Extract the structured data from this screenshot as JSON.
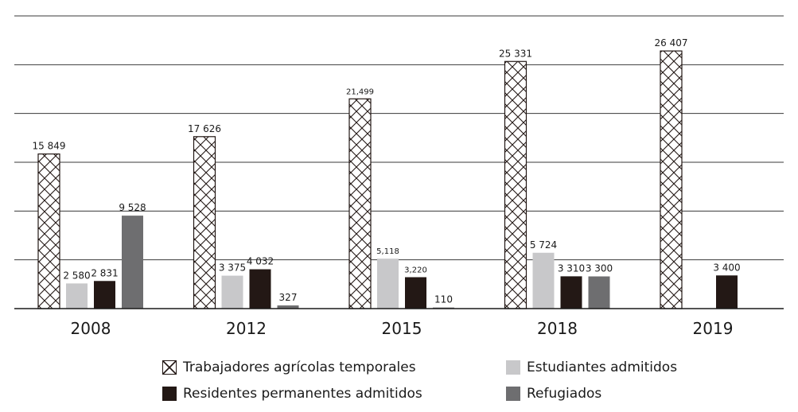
{
  "chart_data": {
    "type": "bar",
    "title": "",
    "xlabel": "",
    "ylabel": "",
    "ylim": [
      0,
      30000
    ],
    "grid": true,
    "categories": [
      "2008",
      "2012",
      "2015",
      "2018",
      "2019"
    ],
    "series": [
      {
        "name": "Trabajadores agrícolas temporales",
        "pattern": "crosshatch",
        "color": "#ffffff",
        "values": [
          15849,
          17626,
          21499,
          25331,
          26407
        ],
        "labels": [
          "15 849",
          "17 626",
          "21,499",
          "25 331",
          "26 407"
        ]
      },
      {
        "name": "Estudiantes admitidos",
        "color": "#c8c8ca",
        "values": [
          2580,
          3375,
          5118,
          5724,
          null
        ],
        "labels": [
          "2 580",
          "3 375",
          "5,118",
          "5 724",
          ""
        ]
      },
      {
        "name": "Residentes permanentes admitidos",
        "color": "#231815",
        "values": [
          2831,
          4032,
          3220,
          3310,
          3400
        ],
        "labels": [
          "2 831",
          "4 032",
          "3,220",
          "3 310",
          "3 400"
        ]
      },
      {
        "name": "Refugiados",
        "color": "#6e6e70",
        "values": [
          9528,
          327,
          110,
          3300,
          null
        ],
        "labels": [
          "9 528",
          "327",
          "110",
          "3 300",
          ""
        ]
      }
    ],
    "legend": [
      {
        "label": "Trabajadores agrícolas temporales",
        "series": 0
      },
      {
        "label": "Estudiantes admitidos",
        "series": 1
      },
      {
        "label": "Residentes permanentes admitidos",
        "series": 2
      },
      {
        "label": "Refugiados",
        "series": 3
      }
    ]
  }
}
